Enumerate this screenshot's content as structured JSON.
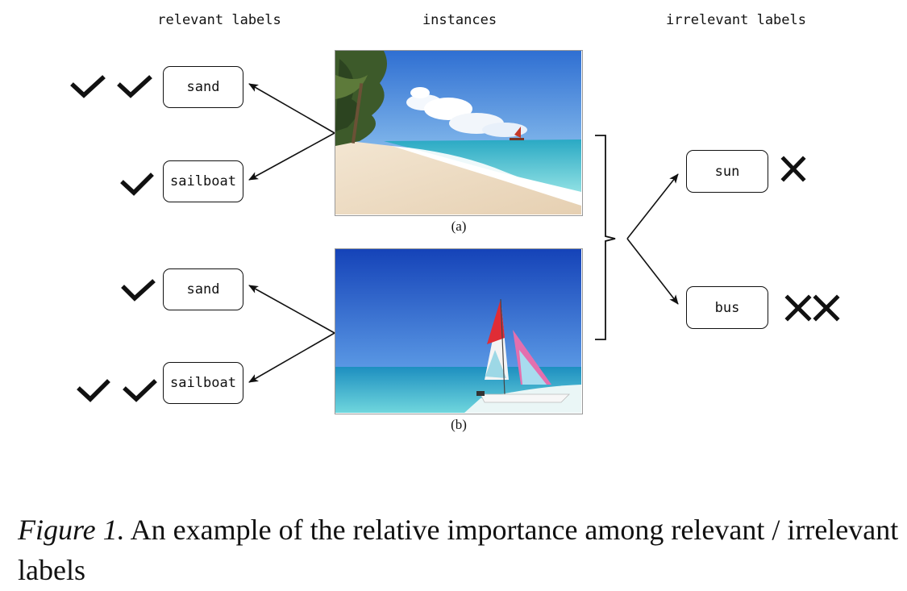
{
  "headers": {
    "relevant": "relevant labels",
    "instances": "instances",
    "irrelevant": "irrelevant labels"
  },
  "instances": [
    {
      "caption": "(a)",
      "scene": "beach-with-palm-trees-and-distant-sailboat",
      "labels": [
        {
          "text": "sand",
          "importance": 2,
          "mark": "check-icon"
        },
        {
          "text": "sailboat",
          "importance": 1,
          "mark": "check-icon"
        }
      ]
    },
    {
      "caption": "(b)",
      "scene": "catamaran-sailboat-on-beach",
      "labels": [
        {
          "text": "sand",
          "importance": 1,
          "mark": "check-icon"
        },
        {
          "text": "sailboat",
          "importance": 2,
          "mark": "check-icon"
        }
      ]
    }
  ],
  "irrelevant_labels": [
    {
      "text": "sun",
      "importance": 1,
      "mark": "cross-icon"
    },
    {
      "text": "bus",
      "importance": 2,
      "mark": "cross-icon"
    }
  ],
  "figure_caption": {
    "label": "Figure 1.",
    "text": " An example of the relative importance among relevant / irrelevant labels"
  },
  "colors": {
    "line": "#111111",
    "sky_a": "#3f7fd6",
    "sea_a": "#3fc2d3",
    "sand_a": "#f1e3cf",
    "sky_b": "#1f5ccf",
    "sea_b": "#2fb2cf"
  }
}
